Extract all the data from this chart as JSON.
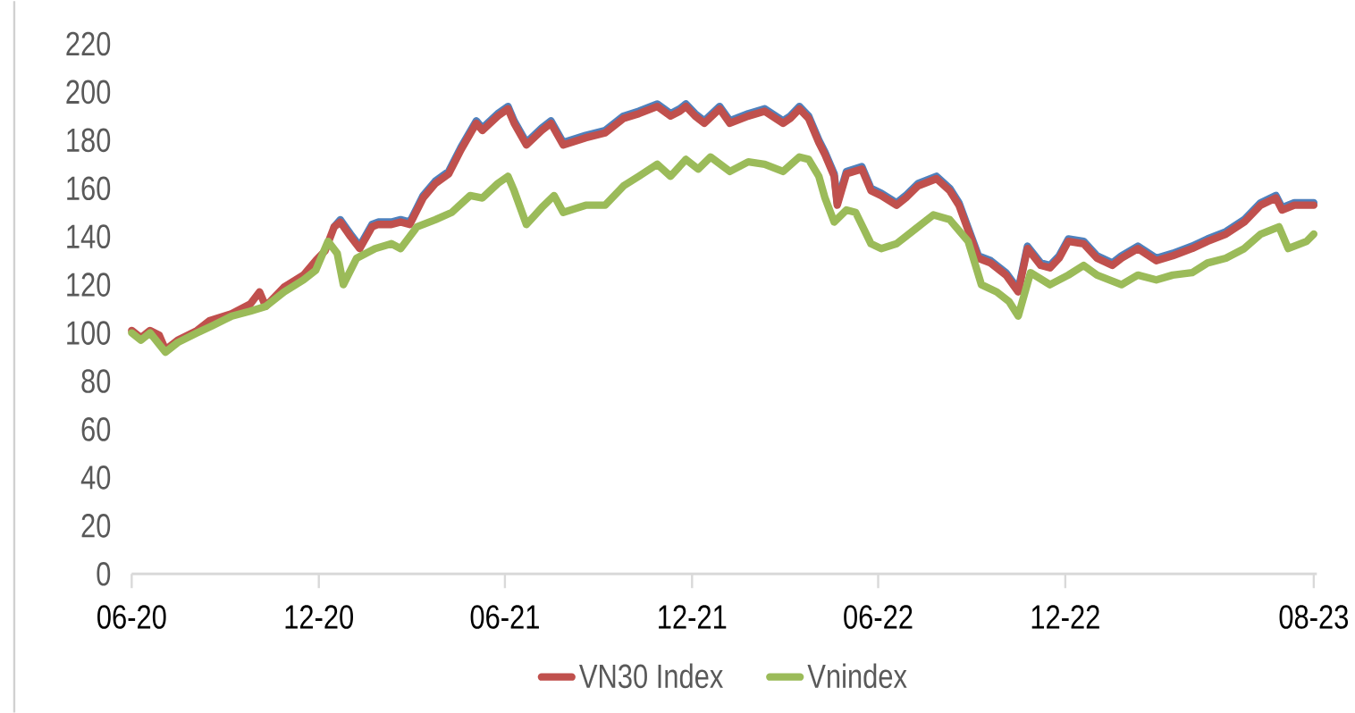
{
  "chart_data": {
    "type": "line",
    "xlim": [
      "2020-06-01",
      "2023-08-04"
    ],
    "ylim": [
      0,
      220
    ],
    "xticks": [
      {
        "value": "2020-06-01",
        "label": "06-20"
      },
      {
        "value": "2020-12-01",
        "label": "12-20"
      },
      {
        "value": "2021-06-01",
        "label": "06-21"
      },
      {
        "value": "2021-12-01",
        "label": "12-21"
      },
      {
        "value": "2022-06-01",
        "label": "06-22"
      },
      {
        "value": "2022-12-01",
        "label": "12-22"
      },
      {
        "value": "2023-08-01",
        "label": "08-23"
      }
    ],
    "yticks": [
      0,
      20,
      40,
      60,
      80,
      100,
      120,
      140,
      160,
      180,
      200,
      220
    ],
    "legend": "bottom",
    "x": [
      "2020-06-01",
      "2020-06-10",
      "2020-06-19",
      "2020-06-28",
      "2020-07-04",
      "2020-07-16",
      "2020-08-04",
      "2020-08-16",
      "2020-09-07",
      "2020-09-25",
      "2020-10-04",
      "2020-10-10",
      "2020-10-28",
      "2020-11-16",
      "2020-11-28",
      "2020-12-07",
      "2020-12-16",
      "2020-12-22",
      "2021-01-01",
      "2021-01-10",
      "2021-01-22",
      "2021-01-28",
      "2021-02-10",
      "2021-02-19",
      "2021-02-28",
      "2021-03-13",
      "2021-03-25",
      "2021-04-07",
      "2021-04-19",
      "2021-05-04",
      "2021-05-10",
      "2021-05-25",
      "2021-06-04",
      "2021-06-10",
      "2021-06-22",
      "2021-07-07",
      "2021-07-16",
      "2021-07-28",
      "2021-08-19",
      "2021-09-07",
      "2021-09-25",
      "2021-10-10",
      "2021-10-28",
      "2021-11-10",
      "2021-11-19",
      "2021-11-25",
      "2021-12-04",
      "2021-12-13",
      "2021-12-28",
      "2022-01-07",
      "2022-01-25",
      "2022-02-10",
      "2022-02-28",
      "2022-03-07",
      "2022-03-16",
      "2022-03-25",
      "2022-04-04",
      "2022-04-10",
      "2022-04-19",
      "2022-04-22",
      "2022-05-01",
      "2022-05-16",
      "2022-05-25",
      "2022-06-04",
      "2022-06-19",
      "2022-06-28",
      "2022-07-10",
      "2022-07-28",
      "2022-08-10",
      "2022-08-19",
      "2022-09-07",
      "2022-09-19",
      "2022-10-04",
      "2022-10-16",
      "2022-10-25",
      "2022-11-07",
      "2022-11-16",
      "2022-11-25",
      "2022-12-04",
      "2022-12-19",
      "2023-01-01",
      "2023-01-16",
      "2023-01-25",
      "2023-02-10",
      "2023-02-28",
      "2023-03-16",
      "2023-04-04",
      "2023-04-19",
      "2023-05-07",
      "2023-05-25",
      "2023-06-10",
      "2023-06-25",
      "2023-07-01",
      "2023-07-13",
      "2023-08-01"
    ],
    "series": [
      {
        "color": "#4f81bd",
        "values": [
          null,
          null,
          null,
          null,
          null,
          null,
          null,
          null,
          null,
          null,
          null,
          null,
          null,
          null,
          null,
          null,
          144,
          147,
          141,
          136,
          145,
          146,
          146,
          147,
          146,
          157,
          163,
          167,
          177,
          188,
          185,
          191,
          194,
          188,
          179,
          185,
          188,
          179,
          182,
          184,
          190,
          192,
          195,
          191,
          193,
          195,
          191,
          188,
          194,
          188,
          191,
          193,
          188,
          190,
          194,
          190,
          180,
          175,
          166,
          154,
          167,
          169,
          160,
          158,
          154,
          157,
          162,
          165,
          160,
          154,
          132,
          130,
          125,
          118,
          136,
          129,
          128,
          132,
          139,
          138,
          132,
          129,
          132,
          136,
          131,
          133,
          136,
          139,
          142,
          147,
          154,
          157,
          152,
          154,
          154
        ]
      },
      {
        "name": "VN30 Index",
        "color": "#c0504d",
        "values": [
          101,
          98,
          101,
          99,
          93,
          97,
          101,
          105,
          108,
          112,
          117,
          111,
          119,
          124,
          130,
          134,
          144,
          146,
          140,
          135,
          144,
          145,
          145,
          146,
          145,
          156,
          162,
          166,
          176,
          187,
          184,
          190,
          193,
          187,
          178,
          184,
          187,
          178,
          181,
          183,
          189,
          191,
          194,
          190,
          192,
          194,
          190,
          187,
          193,
          187,
          190,
          192,
          187,
          189,
          193,
          189,
          179,
          174,
          165,
          153,
          166,
          168,
          159,
          157,
          153,
          156,
          161,
          164,
          159,
          153,
          131,
          129,
          124,
          117,
          135,
          128,
          127,
          131,
          138,
          137,
          131,
          128,
          131,
          135,
          130,
          132,
          135,
          138,
          141,
          146,
          153,
          156,
          151,
          153,
          153
        ]
      },
      {
        "name": "Vnindex",
        "color": "#9bbb59",
        "x": [
          "2020-06-01",
          "2020-06-10",
          "2020-06-19",
          "2020-07-04",
          "2020-07-16",
          "2020-08-04",
          "2020-08-19",
          "2020-09-07",
          "2020-09-25",
          "2020-10-10",
          "2020-10-28",
          "2020-11-16",
          "2020-11-28",
          "2020-12-10",
          "2020-12-19",
          "2020-12-25",
          "2021-01-07",
          "2021-01-25",
          "2021-02-10",
          "2021-02-19",
          "2021-03-07",
          "2021-03-25",
          "2021-04-10",
          "2021-04-28",
          "2021-05-10",
          "2021-05-25",
          "2021-06-04",
          "2021-06-10",
          "2021-06-22",
          "2021-07-07",
          "2021-07-19",
          "2021-07-28",
          "2021-08-19",
          "2021-09-07",
          "2021-09-25",
          "2021-10-10",
          "2021-10-28",
          "2021-11-10",
          "2021-11-25",
          "2021-12-07",
          "2021-12-19",
          "2022-01-07",
          "2022-01-25",
          "2022-02-10",
          "2022-02-28",
          "2022-03-16",
          "2022-03-25",
          "2022-04-04",
          "2022-04-10",
          "2022-04-19",
          "2022-05-01",
          "2022-05-10",
          "2022-05-25",
          "2022-06-04",
          "2022-06-19",
          "2022-07-07",
          "2022-07-25",
          "2022-08-10",
          "2022-08-28",
          "2022-09-10",
          "2022-09-25",
          "2022-10-07",
          "2022-10-16",
          "2022-10-28",
          "2022-11-16",
          "2022-12-04",
          "2022-12-19",
          "2023-01-01",
          "2023-01-25",
          "2023-02-10",
          "2023-02-28",
          "2023-03-16",
          "2023-04-04",
          "2023-04-19",
          "2023-05-07",
          "2023-05-25",
          "2023-06-10",
          "2023-06-28",
          "2023-07-07",
          "2023-07-25",
          "2023-08-01"
        ],
        "values": [
          100,
          97,
          100,
          92,
          96,
          100,
          103,
          107,
          109,
          111,
          117,
          122,
          126,
          138,
          133,
          120,
          131,
          135,
          137,
          135,
          144,
          147,
          150,
          157,
          156,
          162,
          165,
          159,
          145,
          152,
          157,
          150,
          153,
          153,
          161,
          165,
          170,
          165,
          172,
          168,
          173,
          167,
          171,
          170,
          167,
          173,
          172,
          165,
          156,
          146,
          151,
          150,
          137,
          135,
          137,
          143,
          149,
          147,
          138,
          120,
          117,
          113,
          107,
          125,
          120,
          124,
          128,
          124,
          120,
          124,
          122,
          124,
          125,
          129,
          131,
          135,
          141,
          144,
          135,
          138,
          141
        ]
      }
    ]
  }
}
